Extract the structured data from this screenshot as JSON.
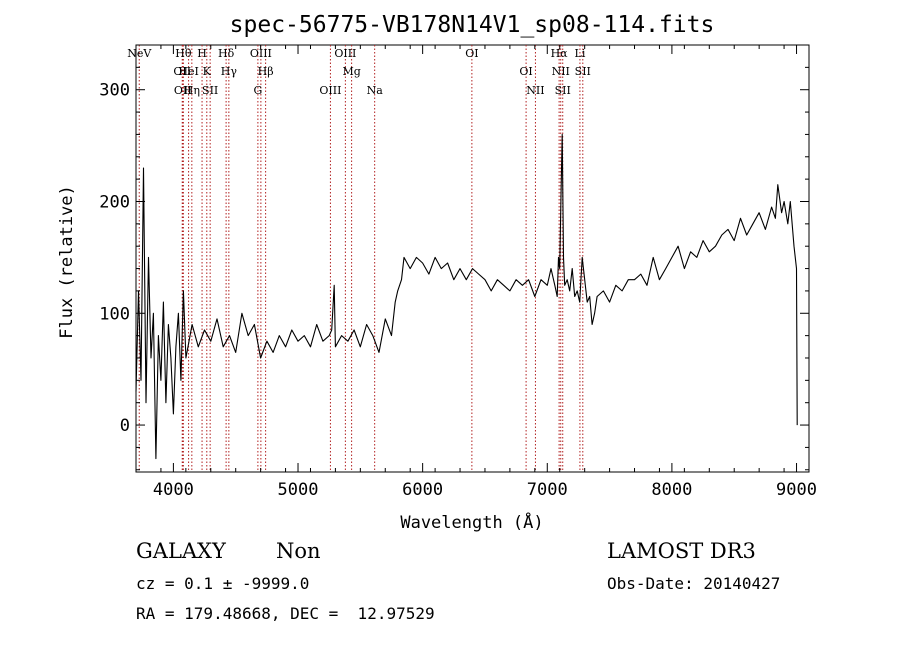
{
  "chart_data": {
    "type": "line",
    "title": "spec-56775-VB178N14V1_sp08-114.fits",
    "xlabel": "Wavelength (Å)",
    "ylabel": "Flux (relative)",
    "xlim": [
      3700,
      9100
    ],
    "ylim": [
      -42,
      340
    ],
    "xticks": [
      4000,
      5000,
      6000,
      7000,
      8000,
      9000
    ],
    "yticks": [
      0,
      100,
      200,
      300
    ],
    "grid": false,
    "line_color": "#000000",
    "marker_color": "#b22222",
    "series": [
      {
        "name": "flux",
        "x": [
          3700,
          3720,
          3740,
          3760,
          3780,
          3800,
          3820,
          3840,
          3860,
          3880,
          3900,
          3920,
          3940,
          3960,
          3980,
          4000,
          4020,
          4040,
          4060,
          4080,
          4100,
          4150,
          4200,
          4250,
          4300,
          4350,
          4400,
          4450,
          4500,
          4550,
          4600,
          4650,
          4700,
          4750,
          4800,
          4850,
          4900,
          4950,
          5000,
          5050,
          5100,
          5150,
          5200,
          5250,
          5270,
          5290,
          5300,
          5350,
          5400,
          5450,
          5500,
          5550,
          5600,
          5650,
          5700,
          5750,
          5780,
          5800,
          5830,
          5850,
          5900,
          5950,
          6000,
          6050,
          6100,
          6150,
          6200,
          6250,
          6300,
          6350,
          6400,
          6450,
          6500,
          6550,
          6600,
          6650,
          6700,
          6750,
          6800,
          6850,
          6900,
          6950,
          7000,
          7030,
          7060,
          7080,
          7090,
          7100,
          7110,
          7120,
          7130,
          7140,
          7160,
          7180,
          7200,
          7220,
          7240,
          7260,
          7280,
          7300,
          7320,
          7340,
          7360,
          7380,
          7400,
          7450,
          7500,
          7550,
          7600,
          7650,
          7700,
          7750,
          7800,
          7850,
          7900,
          7950,
          8000,
          8050,
          8100,
          8150,
          8200,
          8250,
          8300,
          8350,
          8400,
          8450,
          8500,
          8550,
          8600,
          8650,
          8700,
          8750,
          8800,
          8830,
          8850,
          8880,
          8900,
          8930,
          8950,
          8980,
          9000,
          9005
        ],
        "y": [
          30,
          120,
          40,
          230,
          20,
          150,
          60,
          100,
          -30,
          80,
          40,
          110,
          20,
          90,
          60,
          10,
          70,
          100,
          40,
          120,
          60,
          90,
          70,
          85,
          75,
          95,
          70,
          80,
          65,
          100,
          80,
          90,
          60,
          75,
          65,
          80,
          70,
          85,
          75,
          80,
          70,
          90,
          75,
          80,
          85,
          125,
          70,
          80,
          75,
          85,
          70,
          90,
          80,
          65,
          95,
          80,
          110,
          120,
          130,
          150,
          140,
          150,
          145,
          135,
          150,
          140,
          145,
          130,
          140,
          130,
          140,
          135,
          130,
          120,
          130,
          125,
          120,
          130,
          125,
          130,
          115,
          130,
          125,
          140,
          125,
          115,
          150,
          140,
          205,
          260,
          150,
          125,
          130,
          120,
          140,
          115,
          120,
          110,
          150,
          130,
          110,
          115,
          90,
          100,
          115,
          120,
          110,
          125,
          120,
          130,
          130,
          135,
          125,
          150,
          130,
          140,
          150,
          160,
          140,
          155,
          150,
          165,
          155,
          160,
          170,
          175,
          165,
          185,
          170,
          180,
          190,
          175,
          195,
          185,
          215,
          190,
          200,
          180,
          200,
          160,
          140,
          0
        ],
        "markers": [
          {
            "label": "NeV",
            "wl": 3726
          },
          {
            "label": "OII",
            "wl": 4071
          },
          {
            "label": "OII",
            "wl": 4075
          },
          {
            "label": "Hθ",
            "wl": 4080
          },
          {
            "label": "HeI",
            "wl": 4122
          },
          {
            "label": "Hη",
            "wl": 4148
          },
          {
            "label": "H",
            "wl": 4230
          },
          {
            "label": "K",
            "wl": 4268
          },
          {
            "label": "SII",
            "wl": 4295
          },
          {
            "label": "Hδ",
            "wl": 4423
          },
          {
            "label": "Hγ",
            "wl": 4445
          },
          {
            "label": "G",
            "wl": 4678
          },
          {
            "label": "OIII",
            "wl": 4702
          },
          {
            "label": "Hβ",
            "wl": 4740
          },
          {
            "label": "OIII",
            "wl": 5260
          },
          {
            "label": "OIII",
            "wl": 5380
          },
          {
            "label": "Mg",
            "wl": 5430
          },
          {
            "label": "Na",
            "wl": 5615
          },
          {
            "label": "OI",
            "wl": 6395
          },
          {
            "label": "OI",
            "wl": 6830
          },
          {
            "label": "NII",
            "wl": 6905
          },
          {
            "label": "Hα",
            "wl": 7095
          },
          {
            "label": "NII",
            "wl": 7108
          },
          {
            "label": "SII",
            "wl": 7124
          },
          {
            "label": "Li",
            "wl": 7262
          },
          {
            "label": "SII",
            "wl": 7285
          }
        ]
      }
    ]
  },
  "info": {
    "class": "GALAXY",
    "subclass": "Non",
    "survey": "LAMOST DR3",
    "cz": "cz = 0.1 ± -9999.0",
    "obs_date": "Obs-Date: 20140427",
    "coords": "RA = 179.48668, DEC =  12.97529"
  }
}
